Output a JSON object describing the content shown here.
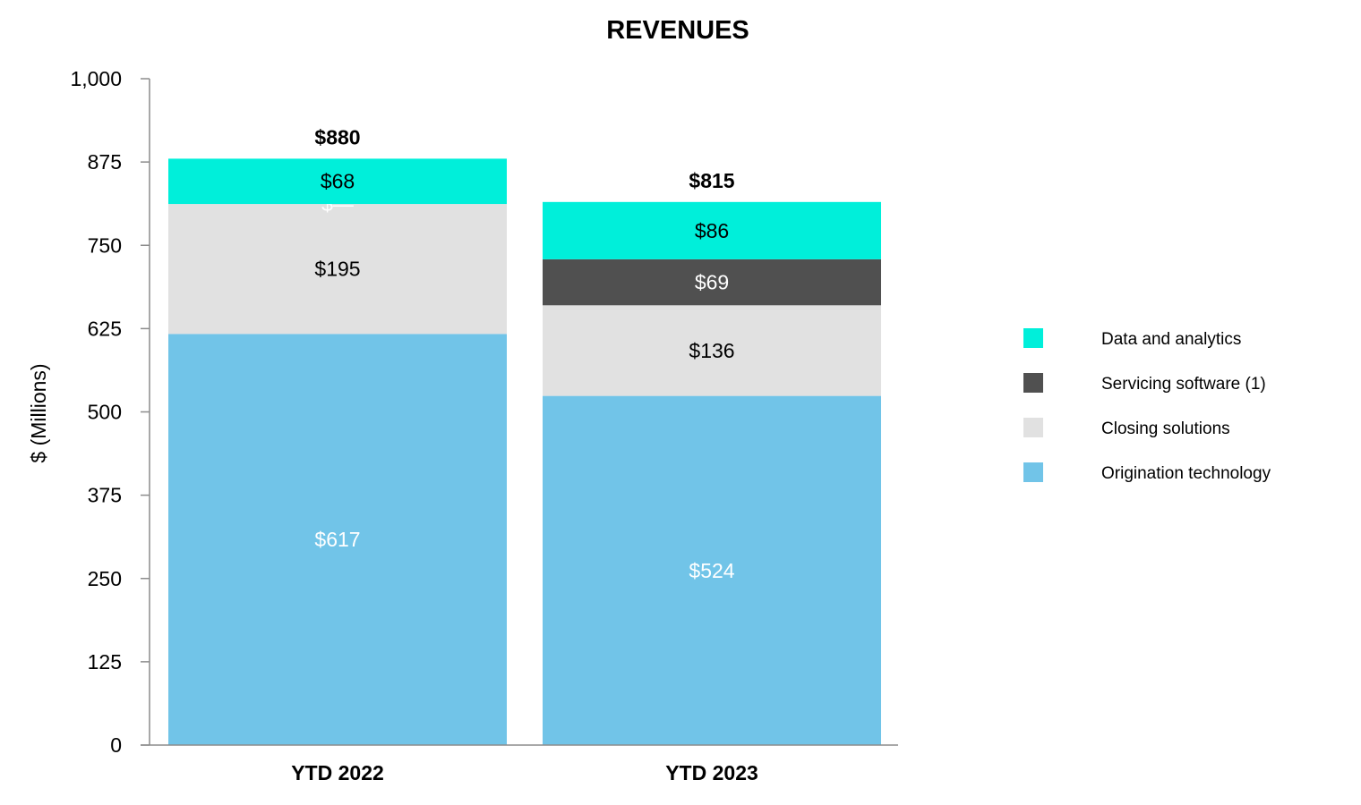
{
  "chart_data": {
    "type": "bar",
    "stacked": true,
    "title": "REVENUES",
    "xlabel": "",
    "ylabel": "$ (Millions)",
    "ylim": [
      0,
      1000
    ],
    "yticks": [
      0,
      125,
      250,
      375,
      500,
      625,
      750,
      875,
      1000
    ],
    "ytick_labels": [
      "0",
      "125",
      "250",
      "375",
      "500",
      "625",
      "750",
      "875",
      "1,000"
    ],
    "categories": [
      "YTD 2022",
      "YTD 2023"
    ],
    "series": [
      {
        "name": "Origination technology",
        "color": "#71C4E8",
        "label_color": "#ffffff",
        "values": [
          617,
          524
        ],
        "labels": [
          "$617",
          "$524"
        ]
      },
      {
        "name": "Closing solutions",
        "color": "#E1E1E1",
        "label_color": "#000000",
        "values": [
          195,
          136
        ],
        "labels": [
          "$195",
          "$136"
        ]
      },
      {
        "name": "Servicing software (1)",
        "color": "#505050",
        "label_color": "#ffffff",
        "values": [
          0,
          69
        ],
        "labels": [
          "$—",
          "$69"
        ]
      },
      {
        "name": "Data and analytics",
        "color": "#00EFDA",
        "label_color": "#000000",
        "values": [
          68,
          86
        ],
        "labels": [
          "$68",
          "$86"
        ]
      }
    ],
    "totals": [
      880,
      815
    ],
    "total_labels": [
      "$880",
      "$815"
    ],
    "legend": [
      "Data and analytics",
      "Servicing software (1)",
      "Closing solutions",
      "Origination technology"
    ],
    "legend_position": "right",
    "grid": false
  }
}
